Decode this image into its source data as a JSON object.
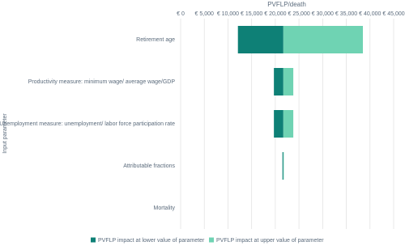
{
  "chart_data": {
    "type": "tornado",
    "title": "PVFLP/death",
    "y_label": "Input parameter",
    "categories": [
      "Retirement age",
      "Productivity measure: minimum wage/ average wage/GDP",
      "Unemployment measure: unemployment/ labor force participation rate",
      "Attributable fractions",
      "Mortality"
    ],
    "base": 21700,
    "series": [
      {
        "name": "PVFLP impact at lower value of parameter",
        "color": "#0e8076",
        "values": [
          12100,
          19700,
          19700,
          21500,
          21700
        ]
      },
      {
        "name": "PVFLP impact at upper value of parameter",
        "color": "#6fd3b3",
        "values": [
          38500,
          23800,
          23800,
          21800,
          21700
        ]
      }
    ],
    "xlim": [
      0,
      45000
    ],
    "xticks": [
      {
        "value": 0,
        "label": "€ 0"
      },
      {
        "value": 5000,
        "label": "€ 5,000"
      },
      {
        "value": 10000,
        "label": "€ 10,000"
      },
      {
        "value": 15000,
        "label": "€ 15,000"
      },
      {
        "value": 20000,
        "label": "€ 20,000"
      },
      {
        "value": 25000,
        "label": "€ 25,000"
      },
      {
        "value": 30000,
        "label": "€ 30,000"
      },
      {
        "value": 35000,
        "label": "€ 35,000"
      },
      {
        "value": 40000,
        "label": "€ 40,000"
      },
      {
        "value": 45000,
        "label": "€ 45,000"
      }
    ],
    "grid": true,
    "legend": "bottom"
  }
}
